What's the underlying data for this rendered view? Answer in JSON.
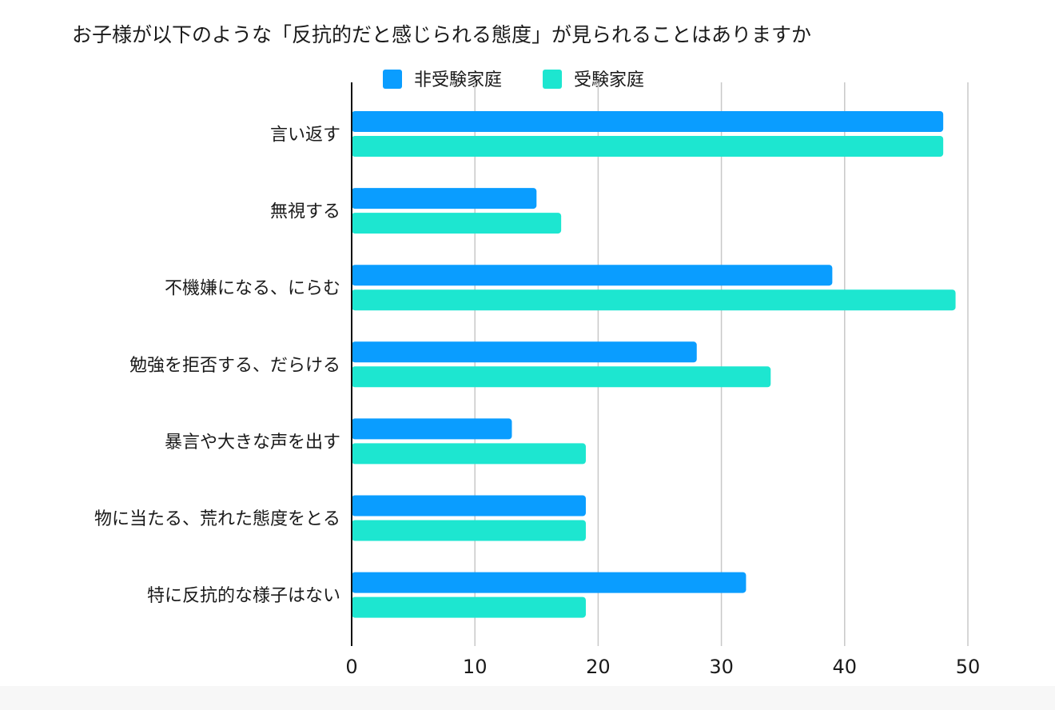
{
  "chart_data": {
    "type": "bar",
    "orientation": "horizontal",
    "title": "お子様が以下のような「反抗的だと感じられる態度」が見られることはありますか",
    "xlabel": "",
    "ylabel": "",
    "xlim": [
      0,
      50
    ],
    "x_ticks": [
      "0",
      "10",
      "20",
      "30",
      "40",
      "50"
    ],
    "grid": true,
    "legend_position": "top",
    "categories": [
      "言い返す",
      "無視する",
      "不機嫌になる、にらむ",
      "勉強を拒否する、だらける",
      "暴言や大きな声を出す",
      "物に当たる、荒れた態度をとる",
      "特に反抗的な様子はない"
    ],
    "series": [
      {
        "name": "非受験家庭",
        "color": "#0a9dff",
        "values": [
          48,
          15,
          39,
          28,
          13,
          19,
          32
        ]
      },
      {
        "name": "受験家庭",
        "color": "#1de6d0",
        "values": [
          48,
          17,
          49,
          34,
          19,
          19,
          19
        ]
      }
    ]
  }
}
